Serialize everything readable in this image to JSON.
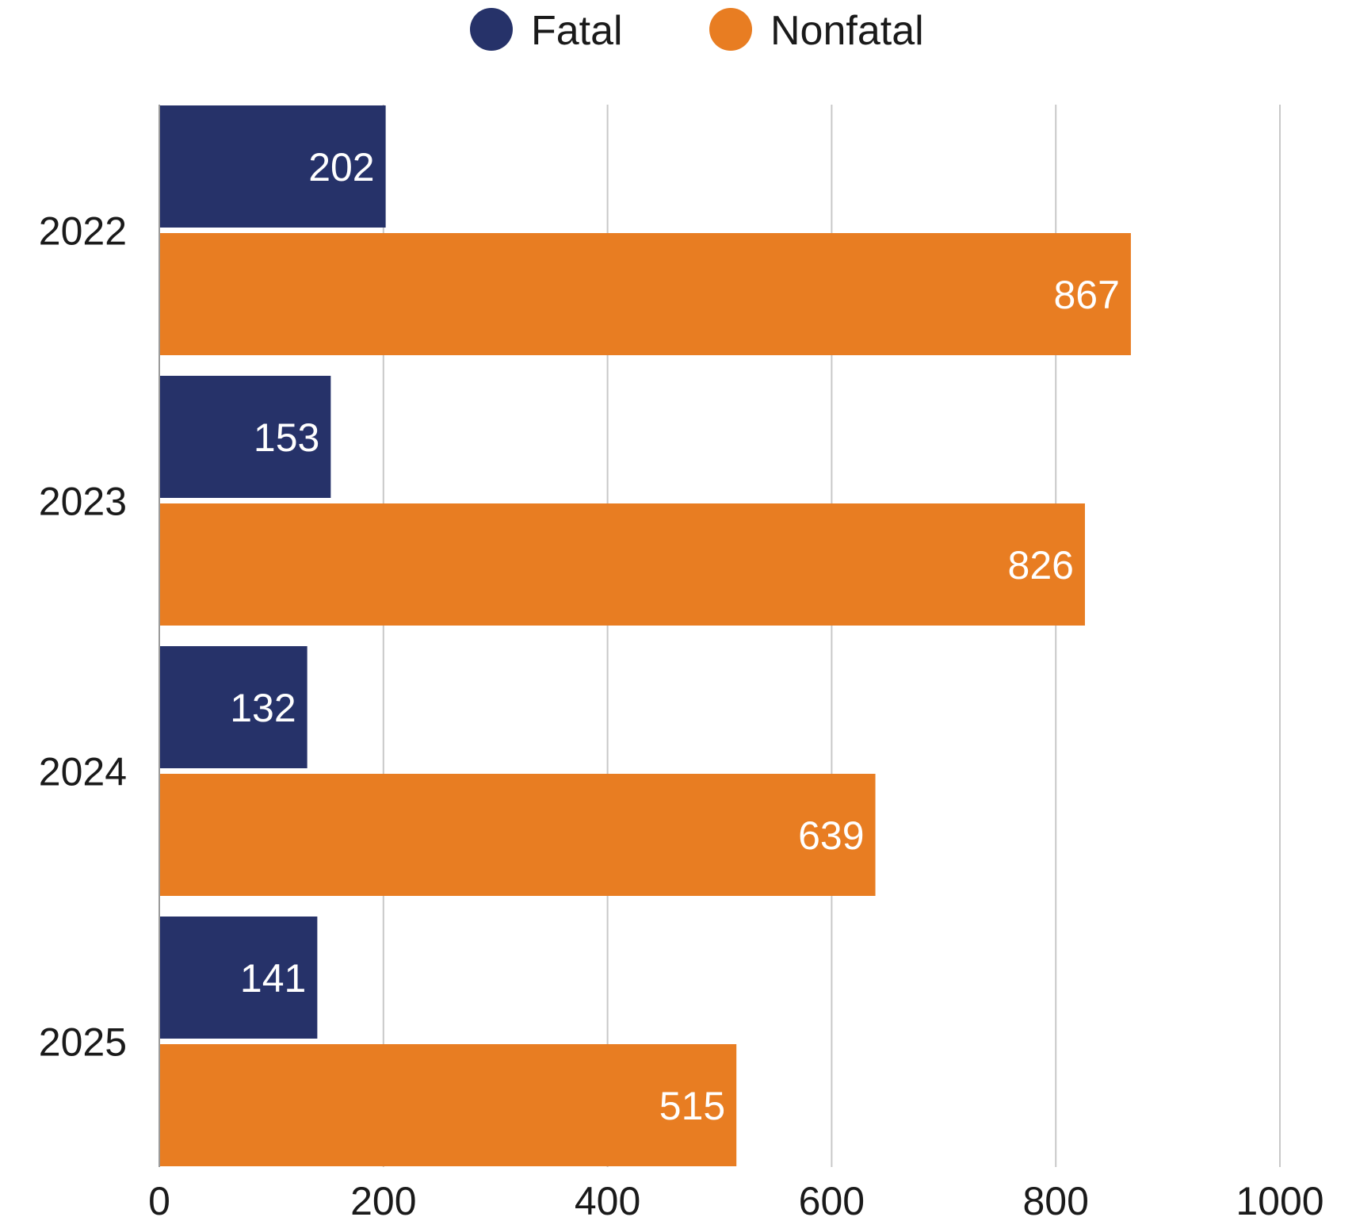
{
  "chart_data": {
    "type": "bar",
    "orientation": "horizontal",
    "categories": [
      "2022",
      "2023",
      "2024",
      "2025"
    ],
    "series": [
      {
        "name": "Fatal",
        "color": "#263269",
        "values": [
          202,
          153,
          132,
          141
        ]
      },
      {
        "name": "Nonfatal",
        "color": "#E87D22",
        "values": [
          867,
          826,
          639,
          515
        ]
      }
    ],
    "xlim": [
      0,
      1000
    ],
    "xticks": [
      "0",
      "200",
      "400",
      "600",
      "800",
      "1000"
    ],
    "grid": "vertical",
    "legend_position": "top-center",
    "data_labels": "inside-end"
  }
}
